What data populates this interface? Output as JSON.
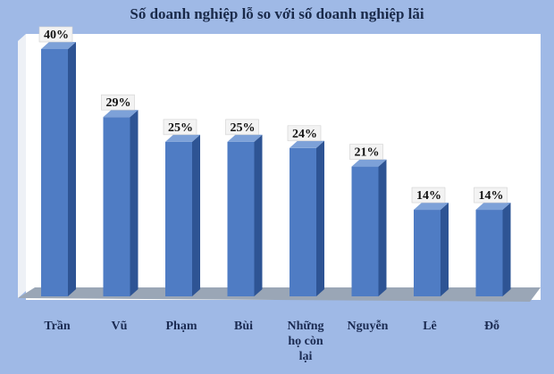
{
  "chart_data": {
    "type": "bar",
    "title": "Số doanh nghiệp lỗ so với số doanh nghiệp lãi",
    "categories": [
      "Trần",
      "Vũ",
      "Phạm",
      "Bùi",
      "Những họ còn lại",
      "Nguyễn",
      "Lê",
      "Đỗ"
    ],
    "values": [
      40,
      29,
      25,
      25,
      24,
      21,
      14,
      14
    ],
    "value_labels": [
      "40%",
      "29%",
      "25%",
      "25%",
      "24%",
      "21%",
      "14%",
      "14%"
    ],
    "ylim": [
      0,
      40
    ],
    "grid": false,
    "colors": {
      "background": "#9fb9e6",
      "plot_area": "#ffffff",
      "bar_front": "#4f7cc4",
      "bar_side": "#2e5494",
      "bar_top": "#7da1d8",
      "floor": "#9aa6b6"
    }
  }
}
